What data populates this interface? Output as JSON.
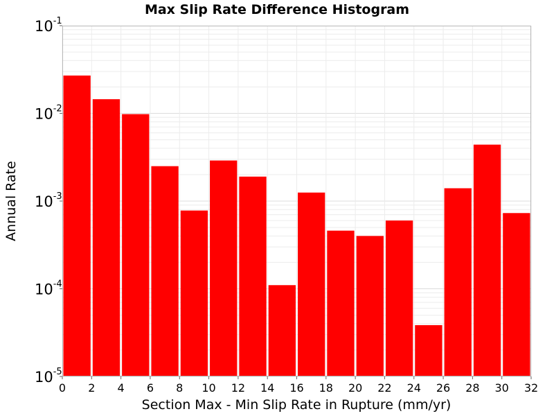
{
  "chart_data": {
    "type": "bar",
    "title": "Max Slip Rate Difference Histogram",
    "xlabel": "Section Max - Min Slip Rate in Rupture (mm/yr)",
    "ylabel": "Annual Rate",
    "x_bin_width": 2,
    "xlim": [
      0,
      32
    ],
    "xticks": [
      0,
      2,
      4,
      6,
      8,
      10,
      12,
      14,
      16,
      18,
      20,
      22,
      24,
      26,
      28,
      30,
      32
    ],
    "y_scale": "log",
    "ylim": [
      1e-05,
      0.1
    ],
    "yticks": [
      {
        "base": "10",
        "exp": "-1",
        "value": 0.1
      },
      {
        "base": "10",
        "exp": "-2",
        "value": 0.01
      },
      {
        "base": "10",
        "exp": "-3",
        "value": 0.001
      },
      {
        "base": "10",
        "exp": "-4",
        "value": 0.0001
      },
      {
        "base": "10",
        "exp": "-5",
        "value": 1e-05
      }
    ],
    "grid": true,
    "bar_color": "#ff0000",
    "bins": [
      {
        "x": 1,
        "value": 0.027
      },
      {
        "x": 3,
        "value": 0.0145
      },
      {
        "x": 5,
        "value": 0.0098
      },
      {
        "x": 7,
        "value": 0.0025
      },
      {
        "x": 9,
        "value": 0.00078
      },
      {
        "x": 11,
        "value": 0.0029
      },
      {
        "x": 13,
        "value": 0.0019
      },
      {
        "x": 15,
        "value": 0.00011
      },
      {
        "x": 17,
        "value": 0.00125
      },
      {
        "x": 19,
        "value": 0.00046
      },
      {
        "x": 21,
        "value": 0.0004
      },
      {
        "x": 23,
        "value": 0.0006
      },
      {
        "x": 25,
        "value": 3.85e-05
      },
      {
        "x": 27,
        "value": 0.0014
      },
      {
        "x": 29,
        "value": 0.0044
      },
      {
        "x": 31,
        "value": 0.00073
      }
    ]
  }
}
